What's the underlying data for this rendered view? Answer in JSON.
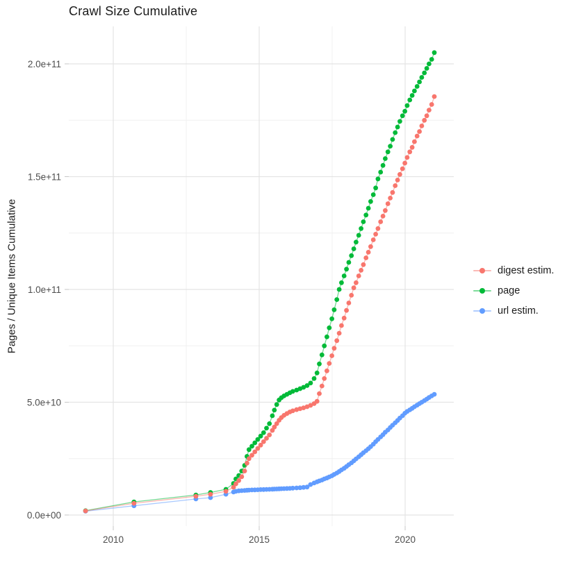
{
  "chart_data": {
    "type": "line",
    "title": "Crawl Size Cumulative",
    "xlabel": "",
    "ylabel": "Pages / Unique Items Cumulative",
    "legend_position": "right",
    "grid": true,
    "value_unit_multiplier": 1000000000.0,
    "value_unit": "billions (1e9) of pages / unique items",
    "xlim": [
      2008.5,
      2021.7
    ],
    "ylim_billions": [
      0,
      216
    ],
    "x_ticks": [
      {
        "value": 2010,
        "label": "2010"
      },
      {
        "value": 2015,
        "label": "2015"
      },
      {
        "value": 2020,
        "label": "2020"
      }
    ],
    "x_minor_gridlines": [
      2012.5,
      2017.5
    ],
    "y_ticks": [
      {
        "value": 0,
        "label": "0.0e+00"
      },
      {
        "value": 50,
        "label": "5.0e+10"
      },
      {
        "value": 100,
        "label": "1.0e+11"
      },
      {
        "value": 150,
        "label": "1.5e+11"
      },
      {
        "value": 200,
        "label": "2.0e+11"
      }
    ],
    "y_minor_gridlines": [
      25,
      75,
      125,
      175
    ],
    "series": [
      {
        "name": "digest estim.",
        "color": "#F8766D",
        "points_year_billions": [
          [
            2009.05,
            1.8
          ],
          [
            2010.71,
            5.2
          ],
          [
            2012.83,
            8.3
          ],
          [
            2013.33,
            9.2
          ],
          [
            2013.86,
            10.5
          ],
          [
            2014.12,
            12.3
          ],
          [
            2014.2,
            13.8
          ],
          [
            2014.3,
            15.3
          ],
          [
            2014.4,
            17
          ],
          [
            2014.5,
            19.5
          ],
          [
            2014.58,
            23
          ],
          [
            2014.65,
            25
          ],
          [
            2014.75,
            26.5
          ],
          [
            2014.85,
            28
          ],
          [
            2014.95,
            29.5
          ],
          [
            2015.05,
            31
          ],
          [
            2015.15,
            32.5
          ],
          [
            2015.25,
            34
          ],
          [
            2015.35,
            35.5
          ],
          [
            2015.45,
            37.5
          ],
          [
            2015.52,
            39
          ],
          [
            2015.6,
            40.5
          ],
          [
            2015.68,
            42
          ],
          [
            2015.76,
            43.2
          ],
          [
            2015.85,
            44.2
          ],
          [
            2015.95,
            45
          ],
          [
            2016.05,
            45.7
          ],
          [
            2016.15,
            46.2
          ],
          [
            2016.28,
            46.7
          ],
          [
            2016.4,
            47.1
          ],
          [
            2016.52,
            47.5
          ],
          [
            2016.64,
            48
          ],
          [
            2016.76,
            48.6
          ],
          [
            2016.88,
            49.4
          ],
          [
            2016.98,
            50.4
          ],
          [
            2017.06,
            53.8
          ],
          [
            2017.15,
            57.2
          ],
          [
            2017.23,
            60.5
          ],
          [
            2017.32,
            63.9
          ],
          [
            2017.4,
            67.2
          ],
          [
            2017.49,
            70.6
          ],
          [
            2017.57,
            73.9
          ],
          [
            2017.66,
            77.3
          ],
          [
            2017.74,
            80.6
          ],
          [
            2017.82,
            84
          ],
          [
            2017.91,
            87.3
          ],
          [
            2017.99,
            90.7
          ],
          [
            2018.07,
            94
          ],
          [
            2018.16,
            97.4
          ],
          [
            2018.24,
            100.7
          ],
          [
            2018.32,
            103
          ],
          [
            2018.41,
            106
          ],
          [
            2018.49,
            108.5
          ],
          [
            2018.57,
            111
          ],
          [
            2018.66,
            114
          ],
          [
            2018.74,
            116.5
          ],
          [
            2018.82,
            119
          ],
          [
            2018.91,
            122
          ],
          [
            2018.99,
            124.5
          ],
          [
            2019.07,
            127
          ],
          [
            2019.16,
            130
          ],
          [
            2019.24,
            132.5
          ],
          [
            2019.32,
            135
          ],
          [
            2019.41,
            138
          ],
          [
            2019.49,
            140.5
          ],
          [
            2019.57,
            143
          ],
          [
            2019.66,
            146
          ],
          [
            2019.74,
            148.5
          ],
          [
            2019.82,
            151
          ],
          [
            2019.91,
            153.5
          ],
          [
            2019.99,
            156
          ],
          [
            2020.07,
            158.5
          ],
          [
            2020.16,
            161
          ],
          [
            2020.24,
            163
          ],
          [
            2020.32,
            165.5
          ],
          [
            2020.41,
            168
          ],
          [
            2020.49,
            170
          ],
          [
            2020.57,
            172.5
          ],
          [
            2020.66,
            175
          ],
          [
            2020.74,
            177
          ],
          [
            2020.82,
            179.5
          ],
          [
            2020.91,
            182
          ],
          [
            2021,
            185.5
          ]
        ]
      },
      {
        "name": "page",
        "color": "#00BA38",
        "points_year_billions": [
          [
            2009.05,
            1.9
          ],
          [
            2010.71,
            5.8
          ],
          [
            2012.83,
            8.9
          ],
          [
            2013.33,
            10
          ],
          [
            2013.86,
            11.4
          ],
          [
            2014.12,
            14
          ],
          [
            2014.2,
            16
          ],
          [
            2014.3,
            17.5
          ],
          [
            2014.4,
            19.5
          ],
          [
            2014.5,
            22
          ],
          [
            2014.58,
            26
          ],
          [
            2014.65,
            29
          ],
          [
            2014.75,
            30.5
          ],
          [
            2014.85,
            32
          ],
          [
            2014.95,
            33.5
          ],
          [
            2015.05,
            35
          ],
          [
            2015.15,
            36.5
          ],
          [
            2015.25,
            38.5
          ],
          [
            2015.35,
            40.5
          ],
          [
            2015.45,
            44
          ],
          [
            2015.52,
            46.5
          ],
          [
            2015.6,
            49
          ],
          [
            2015.68,
            51
          ],
          [
            2015.76,
            52
          ],
          [
            2015.85,
            52.8
          ],
          [
            2015.95,
            53.5
          ],
          [
            2016.05,
            54.2
          ],
          [
            2016.15,
            54.8
          ],
          [
            2016.28,
            55.4
          ],
          [
            2016.4,
            56
          ],
          [
            2016.52,
            56.6
          ],
          [
            2016.64,
            57.4
          ],
          [
            2016.76,
            58.5
          ],
          [
            2016.88,
            60.5
          ],
          [
            2016.98,
            63
          ],
          [
            2017.06,
            67
          ],
          [
            2017.15,
            71
          ],
          [
            2017.23,
            75
          ],
          [
            2017.32,
            79
          ],
          [
            2017.4,
            83
          ],
          [
            2017.49,
            87
          ],
          [
            2017.57,
            91
          ],
          [
            2017.66,
            95.5
          ],
          [
            2017.74,
            100
          ],
          [
            2017.82,
            103
          ],
          [
            2017.91,
            106
          ],
          [
            2017.99,
            109
          ],
          [
            2018.07,
            112
          ],
          [
            2018.16,
            115
          ],
          [
            2018.24,
            118
          ],
          [
            2018.32,
            121
          ],
          [
            2018.41,
            124
          ],
          [
            2018.49,
            127
          ],
          [
            2018.57,
            130
          ],
          [
            2018.66,
            133
          ],
          [
            2018.74,
            136
          ],
          [
            2018.82,
            139
          ],
          [
            2018.91,
            142
          ],
          [
            2018.99,
            145
          ],
          [
            2019.07,
            149
          ],
          [
            2019.16,
            152
          ],
          [
            2019.24,
            155
          ],
          [
            2019.32,
            158
          ],
          [
            2019.41,
            161
          ],
          [
            2019.49,
            163.5
          ],
          [
            2019.57,
            166.5
          ],
          [
            2019.66,
            169.5
          ],
          [
            2019.74,
            172
          ],
          [
            2019.82,
            174.5
          ],
          [
            2019.91,
            177
          ],
          [
            2019.99,
            179
          ],
          [
            2020.07,
            181.5
          ],
          [
            2020.16,
            184
          ],
          [
            2020.24,
            186
          ],
          [
            2020.32,
            188
          ],
          [
            2020.41,
            190
          ],
          [
            2020.49,
            192
          ],
          [
            2020.57,
            194
          ],
          [
            2020.66,
            196
          ],
          [
            2020.74,
            198
          ],
          [
            2020.82,
            200
          ],
          [
            2020.91,
            202
          ],
          [
            2021,
            205
          ]
        ]
      },
      {
        "name": "url estim.",
        "color": "#619CFF",
        "points_year_billions": [
          [
            2009.05,
            1.7
          ],
          [
            2010.71,
            4.1
          ],
          [
            2012.83,
            7.1
          ],
          [
            2013.33,
            7.7
          ],
          [
            2013.86,
            9.2
          ],
          [
            2014.12,
            10.2
          ],
          [
            2014.2,
            10.5
          ],
          [
            2014.3,
            10.7
          ],
          [
            2014.4,
            10.8
          ],
          [
            2014.5,
            10.9
          ],
          [
            2014.58,
            11
          ],
          [
            2014.65,
            11.05
          ],
          [
            2014.75,
            11.1
          ],
          [
            2014.85,
            11.15
          ],
          [
            2014.95,
            11.2
          ],
          [
            2015.05,
            11.25
          ],
          [
            2015.15,
            11.3
          ],
          [
            2015.25,
            11.35
          ],
          [
            2015.35,
            11.4
          ],
          [
            2015.45,
            11.45
          ],
          [
            2015.52,
            11.5
          ],
          [
            2015.6,
            11.55
          ],
          [
            2015.68,
            11.6
          ],
          [
            2015.76,
            11.65
          ],
          [
            2015.85,
            11.7
          ],
          [
            2015.95,
            11.75
          ],
          [
            2016.05,
            11.8
          ],
          [
            2016.15,
            11.9
          ],
          [
            2016.28,
            12
          ],
          [
            2016.4,
            12.1
          ],
          [
            2016.52,
            12.25
          ],
          [
            2016.64,
            12.4
          ],
          [
            2016.76,
            13.5
          ],
          [
            2016.88,
            14.2
          ],
          [
            2016.98,
            14.7
          ],
          [
            2017.06,
            15.1
          ],
          [
            2017.15,
            15.5
          ],
          [
            2017.23,
            16
          ],
          [
            2017.32,
            16.4
          ],
          [
            2017.4,
            16.9
          ],
          [
            2017.49,
            17.4
          ],
          [
            2017.57,
            18
          ],
          [
            2017.66,
            18.6
          ],
          [
            2017.74,
            19.3
          ],
          [
            2017.82,
            20
          ],
          [
            2017.91,
            20.7
          ],
          [
            2017.99,
            21.5
          ],
          [
            2018.07,
            22.3
          ],
          [
            2018.16,
            23.1
          ],
          [
            2018.24,
            24
          ],
          [
            2018.32,
            24.9
          ],
          [
            2018.41,
            25.8
          ],
          [
            2018.49,
            26.7
          ],
          [
            2018.57,
            27.6
          ],
          [
            2018.66,
            28.5
          ],
          [
            2018.74,
            29.4
          ],
          [
            2018.82,
            30.3
          ],
          [
            2018.91,
            31.4
          ],
          [
            2018.99,
            32.5
          ],
          [
            2019.07,
            33.5
          ],
          [
            2019.16,
            34.6
          ],
          [
            2019.24,
            35.6
          ],
          [
            2019.32,
            36.7
          ],
          [
            2019.41,
            37.7
          ],
          [
            2019.49,
            38.8
          ],
          [
            2019.57,
            39.8
          ],
          [
            2019.66,
            40.9
          ],
          [
            2019.74,
            41.9
          ],
          [
            2019.82,
            43
          ],
          [
            2019.91,
            44
          ],
          [
            2019.99,
            45.1
          ],
          [
            2020.07,
            45.9
          ],
          [
            2020.16,
            46.6
          ],
          [
            2020.24,
            47.3
          ],
          [
            2020.32,
            48
          ],
          [
            2020.41,
            48.7
          ],
          [
            2020.49,
            49.4
          ],
          [
            2020.57,
            50
          ],
          [
            2020.66,
            50.7
          ],
          [
            2020.74,
            51.4
          ],
          [
            2020.82,
            52.1
          ],
          [
            2020.91,
            52.8
          ],
          [
            2021,
            53.5
          ]
        ]
      }
    ]
  }
}
